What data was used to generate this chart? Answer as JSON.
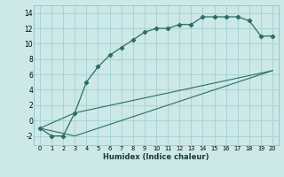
{
  "xlabel": "Humidex (Indice chaleur)",
  "bg_color": "#cce8e8",
  "grid_color": "#aad4d4",
  "line_color": "#2d6e62",
  "xlim": [
    -0.5,
    20.5
  ],
  "ylim": [
    -3.2,
    15.0
  ],
  "xticks": [
    0,
    1,
    2,
    3,
    4,
    5,
    6,
    7,
    8,
    9,
    10,
    11,
    12,
    13,
    14,
    15,
    16,
    17,
    18,
    19,
    20
  ],
  "yticks": [
    -2,
    0,
    2,
    4,
    6,
    8,
    10,
    12,
    14
  ],
  "line1_x": [
    0,
    1,
    2,
    3,
    4,
    5,
    6,
    7,
    8,
    9,
    10,
    11,
    12,
    13,
    14,
    15,
    16,
    17,
    18,
    19,
    20
  ],
  "line1_y": [
    -1,
    -2,
    -2,
    1,
    5,
    7,
    8.5,
    9.5,
    10.5,
    11.5,
    12,
    12,
    12.5,
    12.5,
    13.5,
    13.5,
    13.5,
    13.5,
    13,
    11,
    11
  ],
  "line2_x": [
    0,
    3,
    20
  ],
  "line2_y": [
    -1,
    1,
    6.5
  ],
  "line3_x": [
    0,
    3,
    20
  ],
  "line3_y": [
    -1,
    -2,
    6.5
  ]
}
